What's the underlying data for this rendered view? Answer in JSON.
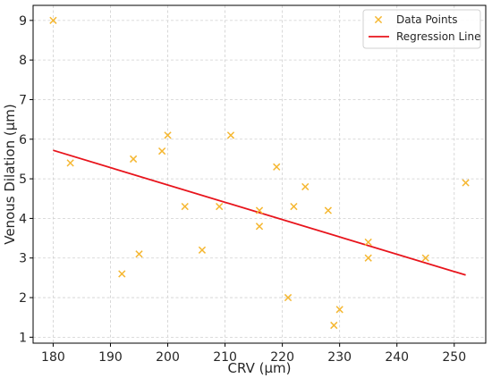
{
  "chart_data": {
    "type": "scatter",
    "title": "",
    "xlabel": "CRV (µm)",
    "ylabel": "Venous Dilation (µm)",
    "xlim": [
      176.5,
      255.5
    ],
    "ylim": [
      0.85,
      9.38
    ],
    "xticks": [
      180,
      190,
      200,
      210,
      220,
      230,
      240,
      250
    ],
    "yticks": [
      1,
      2,
      3,
      4,
      5,
      6,
      7,
      8,
      9
    ],
    "grid": true,
    "legend_position": "top-right",
    "series": [
      {
        "name": "Data Points",
        "kind": "scatter",
        "marker": "x",
        "color": "#f5b731",
        "points": [
          {
            "x": 180,
            "y": 9.0
          },
          {
            "x": 183,
            "y": 5.4
          },
          {
            "x": 192,
            "y": 2.6
          },
          {
            "x": 194,
            "y": 5.5
          },
          {
            "x": 195,
            "y": 3.1
          },
          {
            "x": 199,
            "y": 5.7
          },
          {
            "x": 200,
            "y": 6.1
          },
          {
            "x": 203,
            "y": 4.3
          },
          {
            "x": 206,
            "y": 3.2
          },
          {
            "x": 209,
            "y": 4.3
          },
          {
            "x": 211,
            "y": 6.1
          },
          {
            "x": 216,
            "y": 4.2
          },
          {
            "x": 216,
            "y": 3.8
          },
          {
            "x": 219,
            "y": 5.3
          },
          {
            "x": 221,
            "y": 2.0
          },
          {
            "x": 222,
            "y": 4.3
          },
          {
            "x": 224,
            "y": 4.8
          },
          {
            "x": 228,
            "y": 4.2
          },
          {
            "x": 229,
            "y": 1.3
          },
          {
            "x": 230,
            "y": 1.7
          },
          {
            "x": 235,
            "y": 3.4
          },
          {
            "x": 235,
            "y": 3.0
          },
          {
            "x": 245,
            "y": 3.0
          },
          {
            "x": 252,
            "y": 4.9
          }
        ]
      },
      {
        "name": "Regression Line",
        "kind": "line",
        "color": "#e8141c",
        "points": [
          {
            "x": 180,
            "y": 5.72
          },
          {
            "x": 252,
            "y": 2.57
          }
        ]
      }
    ]
  }
}
